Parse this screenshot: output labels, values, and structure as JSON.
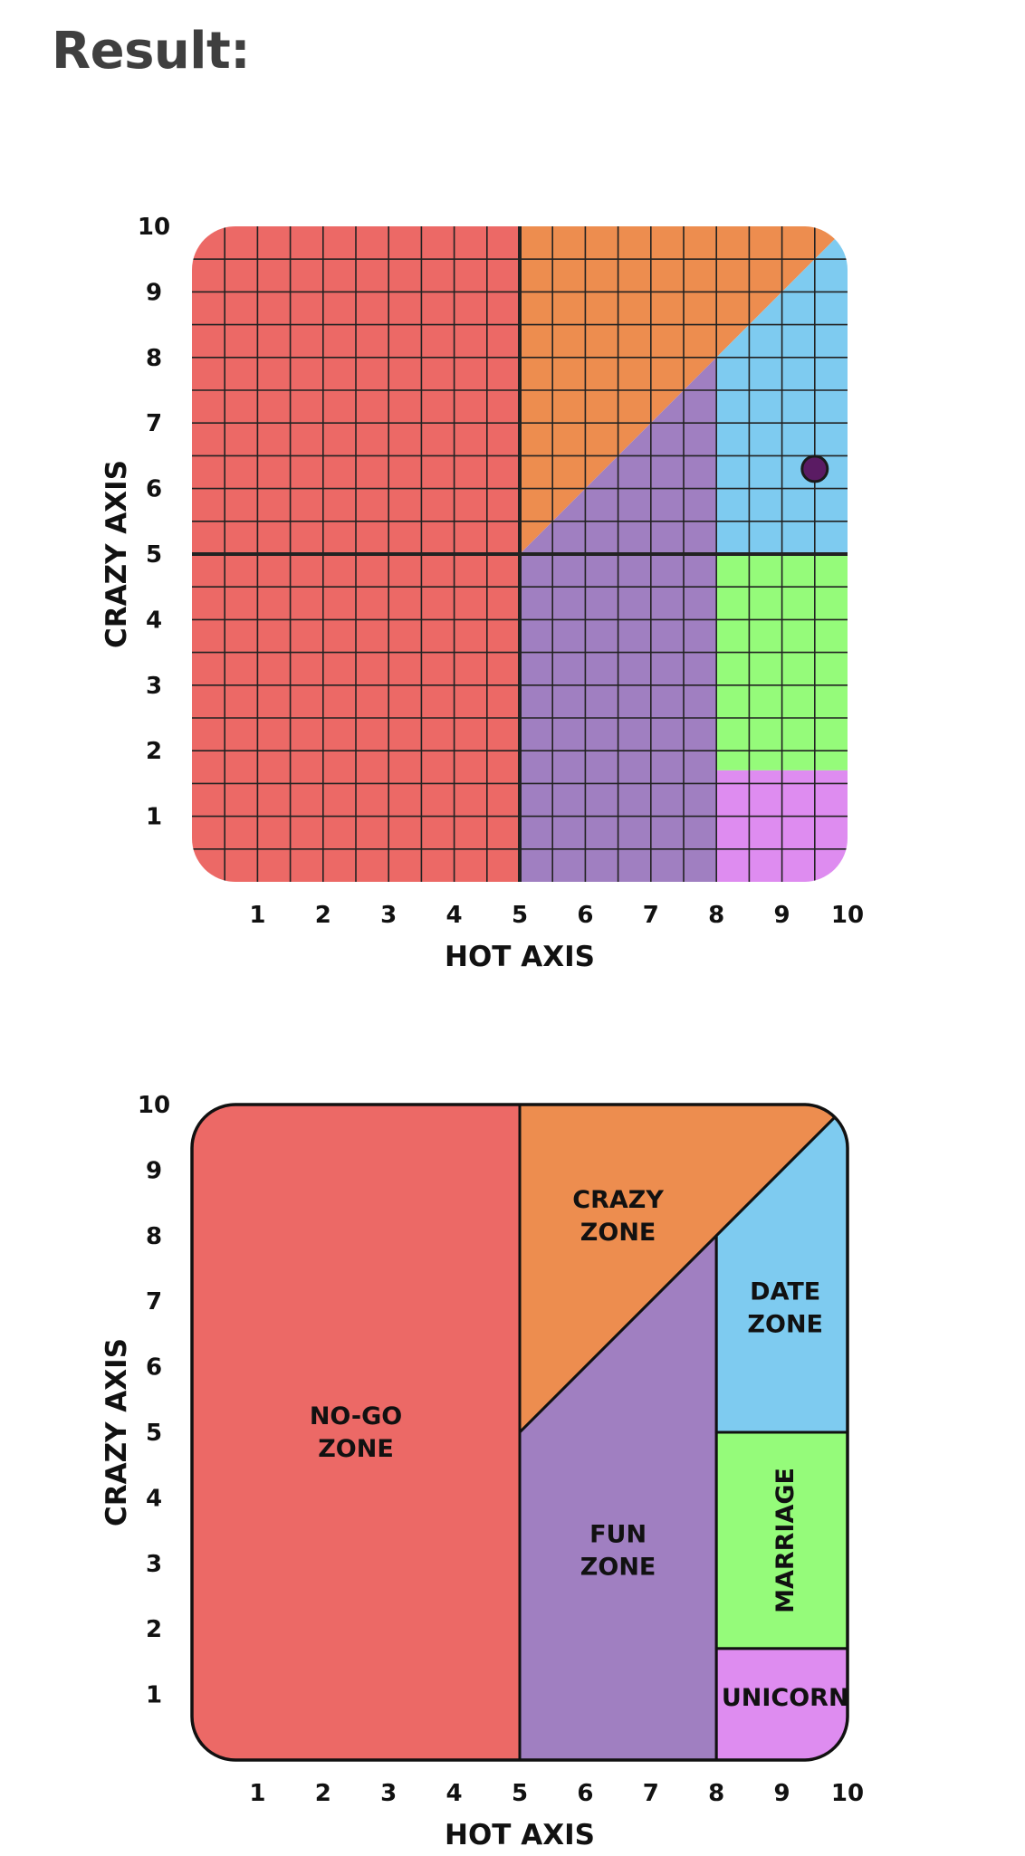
{
  "heading": "Result:",
  "colors": {
    "no_go": "#ec6966",
    "crazy": "#ed8d4f",
    "fun": "#a07fc1",
    "date": "#7ecbf0",
    "marriage": "#95fb7a",
    "unicorn": "#de8cf0",
    "grid_line": "#222222",
    "marker": "#5a1b63"
  },
  "chart_data": [
    {
      "type": "scatter",
      "xlabel": "HOT AXIS",
      "ylabel": "CRAZY AXIS",
      "xlim": [
        0,
        10
      ],
      "ylim": [
        0,
        10
      ],
      "x_ticks": [
        "1",
        "2",
        "3",
        "4",
        "5",
        "6",
        "7",
        "8",
        "9",
        "10"
      ],
      "y_ticks": [
        "1",
        "2",
        "3",
        "4",
        "5",
        "6",
        "7",
        "8",
        "9",
        "10"
      ],
      "grid": true,
      "grid_step": 0.5,
      "points": [
        {
          "x": 9.5,
          "y": 6.3
        }
      ]
    },
    {
      "type": "area",
      "xlabel": "HOT AXIS",
      "ylabel": "CRAZY AXIS",
      "xlim": [
        0,
        10
      ],
      "ylim": [
        0,
        10
      ],
      "x_ticks": [
        "1",
        "2",
        "3",
        "4",
        "5",
        "6",
        "7",
        "8",
        "9",
        "10"
      ],
      "y_ticks": [
        "1",
        "2",
        "3",
        "4",
        "5",
        "6",
        "7",
        "8",
        "9",
        "10"
      ],
      "grid": false,
      "zones": [
        {
          "name": "NO-GO ZONE",
          "lines": [
            "NO-GO",
            "ZONE"
          ],
          "color_key": "no_go",
          "label_at": [
            2.5,
            5
          ],
          "polygon": [
            [
              0,
              0
            ],
            [
              5,
              0
            ],
            [
              5,
              10
            ],
            [
              0,
              10
            ]
          ]
        },
        {
          "name": "CRAZY ZONE",
          "lines": [
            "CRAZY",
            "ZONE"
          ],
          "color_key": "crazy",
          "label_at": [
            6.5,
            8.3
          ],
          "polygon": [
            [
              5,
              5
            ],
            [
              5,
              10
            ],
            [
              10,
              10
            ],
            [
              10,
              10
            ]
          ]
        },
        {
          "name": "FUN ZONE",
          "lines": [
            "FUN",
            "ZONE"
          ],
          "color_key": "fun",
          "label_at": [
            6.5,
            3.2
          ],
          "polygon": [
            [
              5,
              0
            ],
            [
              8,
              0
            ],
            [
              8,
              8
            ],
            [
              5,
              5
            ]
          ]
        },
        {
          "name": "DATE ZONE",
          "lines": [
            "DATE",
            "ZONE"
          ],
          "color_key": "date",
          "label_at": [
            9.05,
            6.9
          ],
          "polygon": [
            [
              8,
              5
            ],
            [
              10,
              5
            ],
            [
              10,
              10
            ],
            [
              8,
              8
            ]
          ]
        },
        {
          "name": "MARRIAGE",
          "lines": [
            "MARRIAGE"
          ],
          "color_key": "marriage",
          "label_at": [
            9.05,
            3.35
          ],
          "rotate": true,
          "polygon": [
            [
              8,
              1.7
            ],
            [
              10,
              1.7
            ],
            [
              10,
              5
            ],
            [
              8,
              5
            ]
          ]
        },
        {
          "name": "UNICORN",
          "lines": [
            "UNICORN"
          ],
          "color_key": "unicorn",
          "label_at": [
            9.05,
            0.95
          ],
          "polygon": [
            [
              8,
              0
            ],
            [
              10,
              0
            ],
            [
              10,
              1.7
            ],
            [
              8,
              1.7
            ]
          ]
        }
      ]
    }
  ]
}
